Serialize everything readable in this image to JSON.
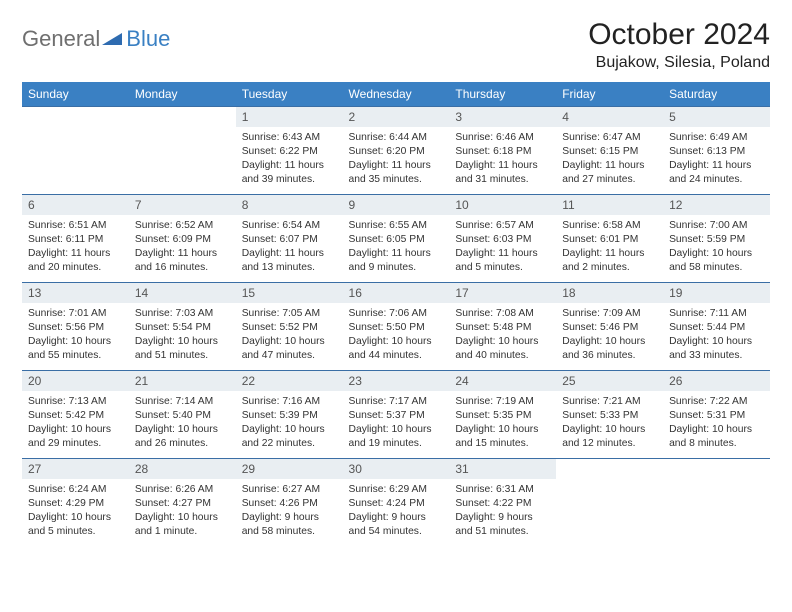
{
  "logo": {
    "general": "General",
    "blue": "Blue"
  },
  "title": "October 2024",
  "location": "Bujakow, Silesia, Poland",
  "colors": {
    "header_bg": "#3a80c3",
    "daynum_bg": "#e9eef2",
    "border": "#3a6ea5",
    "text": "#333333",
    "logo_gray": "#6f6f6f",
    "logo_blue": "#3a80c3"
  },
  "weekdays": [
    "Sunday",
    "Monday",
    "Tuesday",
    "Wednesday",
    "Thursday",
    "Friday",
    "Saturday"
  ],
  "weeks": [
    [
      null,
      null,
      {
        "n": "1",
        "sr": "Sunrise: 6:43 AM",
        "ss": "Sunset: 6:22 PM",
        "d1": "Daylight: 11 hours",
        "d2": "and 39 minutes."
      },
      {
        "n": "2",
        "sr": "Sunrise: 6:44 AM",
        "ss": "Sunset: 6:20 PM",
        "d1": "Daylight: 11 hours",
        "d2": "and 35 minutes."
      },
      {
        "n": "3",
        "sr": "Sunrise: 6:46 AM",
        "ss": "Sunset: 6:18 PM",
        "d1": "Daylight: 11 hours",
        "d2": "and 31 minutes."
      },
      {
        "n": "4",
        "sr": "Sunrise: 6:47 AM",
        "ss": "Sunset: 6:15 PM",
        "d1": "Daylight: 11 hours",
        "d2": "and 27 minutes."
      },
      {
        "n": "5",
        "sr": "Sunrise: 6:49 AM",
        "ss": "Sunset: 6:13 PM",
        "d1": "Daylight: 11 hours",
        "d2": "and 24 minutes."
      }
    ],
    [
      {
        "n": "6",
        "sr": "Sunrise: 6:51 AM",
        "ss": "Sunset: 6:11 PM",
        "d1": "Daylight: 11 hours",
        "d2": "and 20 minutes."
      },
      {
        "n": "7",
        "sr": "Sunrise: 6:52 AM",
        "ss": "Sunset: 6:09 PM",
        "d1": "Daylight: 11 hours",
        "d2": "and 16 minutes."
      },
      {
        "n": "8",
        "sr": "Sunrise: 6:54 AM",
        "ss": "Sunset: 6:07 PM",
        "d1": "Daylight: 11 hours",
        "d2": "and 13 minutes."
      },
      {
        "n": "9",
        "sr": "Sunrise: 6:55 AM",
        "ss": "Sunset: 6:05 PM",
        "d1": "Daylight: 11 hours",
        "d2": "and 9 minutes."
      },
      {
        "n": "10",
        "sr": "Sunrise: 6:57 AM",
        "ss": "Sunset: 6:03 PM",
        "d1": "Daylight: 11 hours",
        "d2": "and 5 minutes."
      },
      {
        "n": "11",
        "sr": "Sunrise: 6:58 AM",
        "ss": "Sunset: 6:01 PM",
        "d1": "Daylight: 11 hours",
        "d2": "and 2 minutes."
      },
      {
        "n": "12",
        "sr": "Sunrise: 7:00 AM",
        "ss": "Sunset: 5:59 PM",
        "d1": "Daylight: 10 hours",
        "d2": "and 58 minutes."
      }
    ],
    [
      {
        "n": "13",
        "sr": "Sunrise: 7:01 AM",
        "ss": "Sunset: 5:56 PM",
        "d1": "Daylight: 10 hours",
        "d2": "and 55 minutes."
      },
      {
        "n": "14",
        "sr": "Sunrise: 7:03 AM",
        "ss": "Sunset: 5:54 PM",
        "d1": "Daylight: 10 hours",
        "d2": "and 51 minutes."
      },
      {
        "n": "15",
        "sr": "Sunrise: 7:05 AM",
        "ss": "Sunset: 5:52 PM",
        "d1": "Daylight: 10 hours",
        "d2": "and 47 minutes."
      },
      {
        "n": "16",
        "sr": "Sunrise: 7:06 AM",
        "ss": "Sunset: 5:50 PM",
        "d1": "Daylight: 10 hours",
        "d2": "and 44 minutes."
      },
      {
        "n": "17",
        "sr": "Sunrise: 7:08 AM",
        "ss": "Sunset: 5:48 PM",
        "d1": "Daylight: 10 hours",
        "d2": "and 40 minutes."
      },
      {
        "n": "18",
        "sr": "Sunrise: 7:09 AM",
        "ss": "Sunset: 5:46 PM",
        "d1": "Daylight: 10 hours",
        "d2": "and 36 minutes."
      },
      {
        "n": "19",
        "sr": "Sunrise: 7:11 AM",
        "ss": "Sunset: 5:44 PM",
        "d1": "Daylight: 10 hours",
        "d2": "and 33 minutes."
      }
    ],
    [
      {
        "n": "20",
        "sr": "Sunrise: 7:13 AM",
        "ss": "Sunset: 5:42 PM",
        "d1": "Daylight: 10 hours",
        "d2": "and 29 minutes."
      },
      {
        "n": "21",
        "sr": "Sunrise: 7:14 AM",
        "ss": "Sunset: 5:40 PM",
        "d1": "Daylight: 10 hours",
        "d2": "and 26 minutes."
      },
      {
        "n": "22",
        "sr": "Sunrise: 7:16 AM",
        "ss": "Sunset: 5:39 PM",
        "d1": "Daylight: 10 hours",
        "d2": "and 22 minutes."
      },
      {
        "n": "23",
        "sr": "Sunrise: 7:17 AM",
        "ss": "Sunset: 5:37 PM",
        "d1": "Daylight: 10 hours",
        "d2": "and 19 minutes."
      },
      {
        "n": "24",
        "sr": "Sunrise: 7:19 AM",
        "ss": "Sunset: 5:35 PM",
        "d1": "Daylight: 10 hours",
        "d2": "and 15 minutes."
      },
      {
        "n": "25",
        "sr": "Sunrise: 7:21 AM",
        "ss": "Sunset: 5:33 PM",
        "d1": "Daylight: 10 hours",
        "d2": "and 12 minutes."
      },
      {
        "n": "26",
        "sr": "Sunrise: 7:22 AM",
        "ss": "Sunset: 5:31 PM",
        "d1": "Daylight: 10 hours",
        "d2": "and 8 minutes."
      }
    ],
    [
      {
        "n": "27",
        "sr": "Sunrise: 6:24 AM",
        "ss": "Sunset: 4:29 PM",
        "d1": "Daylight: 10 hours",
        "d2": "and 5 minutes."
      },
      {
        "n": "28",
        "sr": "Sunrise: 6:26 AM",
        "ss": "Sunset: 4:27 PM",
        "d1": "Daylight: 10 hours",
        "d2": "and 1 minute."
      },
      {
        "n": "29",
        "sr": "Sunrise: 6:27 AM",
        "ss": "Sunset: 4:26 PM",
        "d1": "Daylight: 9 hours",
        "d2": "and 58 minutes."
      },
      {
        "n": "30",
        "sr": "Sunrise: 6:29 AM",
        "ss": "Sunset: 4:24 PM",
        "d1": "Daylight: 9 hours",
        "d2": "and 54 minutes."
      },
      {
        "n": "31",
        "sr": "Sunrise: 6:31 AM",
        "ss": "Sunset: 4:22 PM",
        "d1": "Daylight: 9 hours",
        "d2": "and 51 minutes."
      },
      null,
      null
    ]
  ]
}
